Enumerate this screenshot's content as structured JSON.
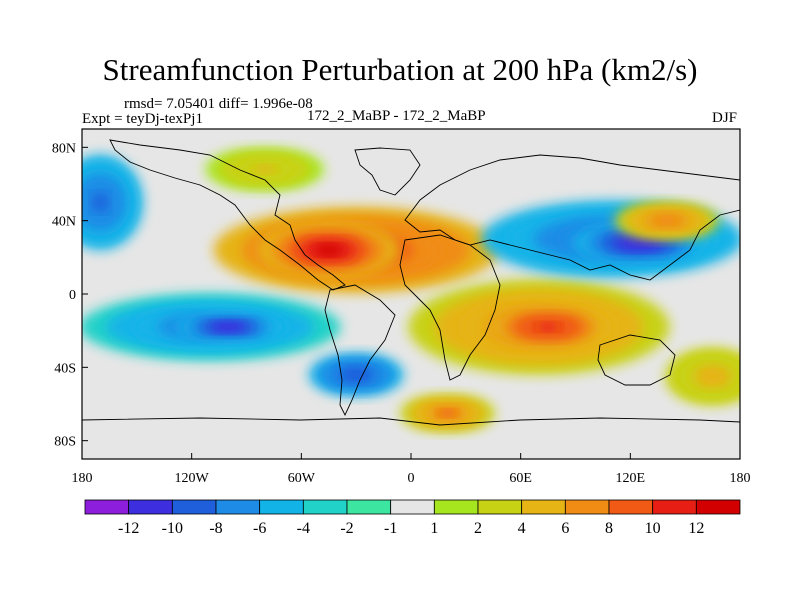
{
  "header": {
    "title": "Streamfunction Perturbation at 200 hPa (km2/s)",
    "stats": "rmsd= 7.05401 diff= 1.996e-08",
    "experiment": "Expt = teyDj-texPj1",
    "case": "172_2_MaBP - 172_2_MaBP",
    "season": "DJF"
  },
  "map": {
    "lon_labels": [
      "180",
      "120W",
      "60W",
      "0",
      "60E",
      "120E",
      "180"
    ],
    "lat_labels": [
      "80N",
      "40N",
      "0",
      "40S",
      "80S"
    ],
    "lat_values": [
      80,
      40,
      0,
      -40,
      -80
    ],
    "lon_values": [
      -180,
      -120,
      -60,
      0,
      60,
      120,
      180
    ],
    "blobs": [
      {
        "lon": -30,
        "lat": 24,
        "rx": 60,
        "ry": 18,
        "level": 10
      },
      {
        "lon": -45,
        "lat": 24,
        "rx": 30,
        "ry": 12,
        "level": 12
      },
      {
        "lon": 70,
        "lat": -18,
        "rx": 55,
        "ry": 20,
        "level": 8
      },
      {
        "lon": 75,
        "lat": -18,
        "rx": 25,
        "ry": 9,
        "level": 11
      },
      {
        "lon": 110,
        "lat": 30,
        "rx": 55,
        "ry": 16,
        "level": -9
      },
      {
        "lon": 125,
        "lat": 28,
        "rx": 28,
        "ry": 9,
        "level": -12
      },
      {
        "lon": -110,
        "lat": -18,
        "rx": 55,
        "ry": 14,
        "level": -8
      },
      {
        "lon": -100,
        "lat": -18,
        "rx": 22,
        "ry": 6,
        "level": -12
      },
      {
        "lon": -30,
        "lat": -44,
        "rx": 20,
        "ry": 9,
        "level": -10
      },
      {
        "lon": -170,
        "lat": 50,
        "rx": 18,
        "ry": 20,
        "level": -9
      },
      {
        "lon": 20,
        "lat": -65,
        "rx": 20,
        "ry": 8,
        "level": 8
      },
      {
        "lon": 140,
        "lat": 40,
        "rx": 22,
        "ry": 8,
        "level": 7
      },
      {
        "lon": -80,
        "lat": 68,
        "rx": 25,
        "ry": 9,
        "level": 4
      },
      {
        "lon": 165,
        "lat": -45,
        "rx": 20,
        "ry": 12,
        "level": 5
      }
    ]
  },
  "colorbar": {
    "labels": [
      "-12",
      "-10",
      "-8",
      "-6",
      "-4",
      "-2",
      "-1",
      "1",
      "2",
      "4",
      "6",
      "8",
      "10",
      "12"
    ],
    "colors": [
      "#8c1edc",
      "#3d2fe0",
      "#1f5fdc",
      "#1e8ce6",
      "#12b4e8",
      "#20d2c8",
      "#3ce6a0",
      "#e6e6e6",
      "#a6e61e",
      "#c8d214",
      "#e6b414",
      "#f08c14",
      "#f05a14",
      "#e61e14",
      "#d20000"
    ]
  }
}
